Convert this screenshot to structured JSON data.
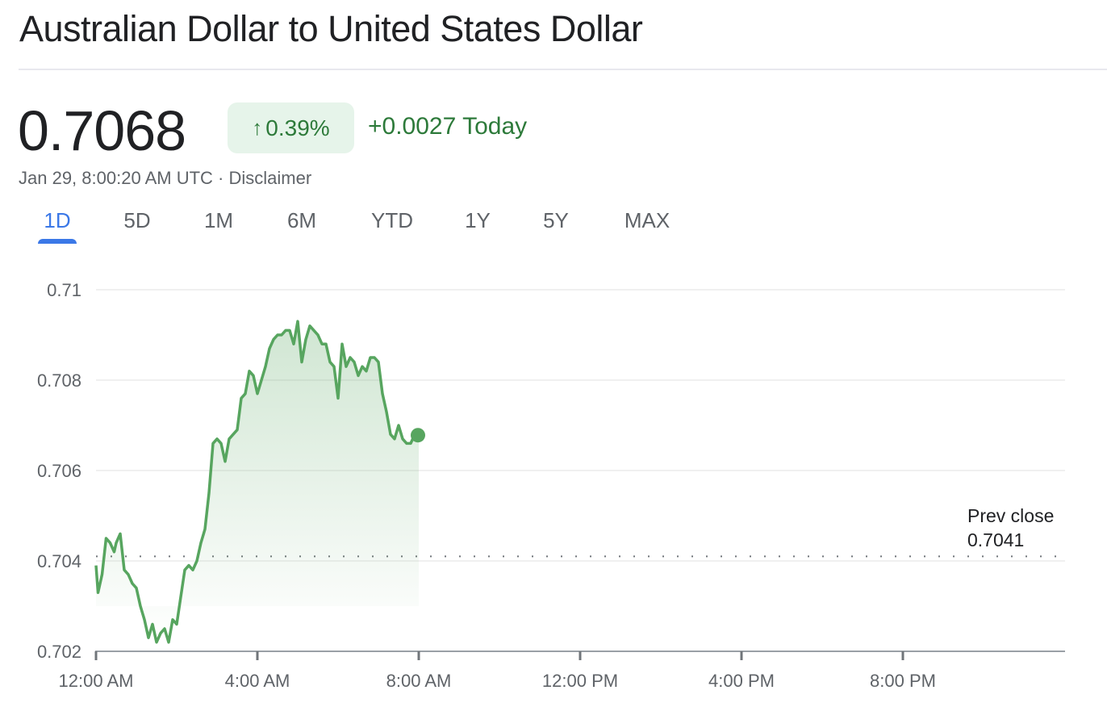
{
  "header": {
    "title": "Australian Dollar to United States Dollar"
  },
  "quote": {
    "price": "0.7068",
    "change_percent": "0.39%",
    "change_arrow": "↑",
    "change_abs": "+0.0027 Today",
    "timestamp": "Jan 29, 8:00:20 AM UTC",
    "separator": "·",
    "disclaimer": "Disclaimer"
  },
  "tabs": [
    {
      "label": "1D",
      "active": true
    },
    {
      "label": "5D"
    },
    {
      "label": "1M"
    },
    {
      "label": "6M"
    },
    {
      "label": "YTD"
    },
    {
      "label": "1Y"
    },
    {
      "label": "5Y"
    },
    {
      "label": "MAX"
    }
  ],
  "colors": {
    "line": "#57a55f",
    "positive_text": "#2d7a3a",
    "badge_bg": "#e6f4ea",
    "active_tab": "#3b78e7"
  },
  "prev_close": {
    "label": "Prev close",
    "value": "0.7041"
  },
  "chart_data": {
    "type": "area",
    "title": "Australian Dollar to United States Dollar (1D)",
    "xlabel": "",
    "ylabel": "",
    "x_ticks": [
      "12:00 AM",
      "4:00 AM",
      "8:00 AM",
      "12:00 PM",
      "4:00 PM",
      "8:00 PM"
    ],
    "y_ticks": [
      "0.702",
      "0.704",
      "0.706",
      "0.708",
      "0.71"
    ],
    "ylim": [
      0.702,
      0.71
    ],
    "xlim_hours": [
      0,
      24
    ],
    "grid": true,
    "reference_line": {
      "label": "Prev close",
      "value": 0.7041,
      "style": "dotted"
    },
    "last_point": {
      "time": "8:00 AM",
      "value": 0.7068
    },
    "series": [
      {
        "name": "AUD/USD",
        "x_hours": [
          0,
          0.05,
          0.15,
          0.25,
          0.35,
          0.45,
          0.5,
          0.6,
          0.7,
          0.8,
          0.9,
          1.0,
          1.1,
          1.2,
          1.3,
          1.4,
          1.5,
          1.6,
          1.7,
          1.8,
          1.9,
          2.0,
          2.1,
          2.2,
          2.3,
          2.4,
          2.5,
          2.6,
          2.7,
          2.8,
          2.9,
          3.0,
          3.1,
          3.2,
          3.3,
          3.4,
          3.5,
          3.6,
          3.7,
          3.8,
          3.9,
          4.0,
          4.1,
          4.2,
          4.3,
          4.4,
          4.5,
          4.6,
          4.7,
          4.8,
          4.9,
          5.0,
          5.1,
          5.2,
          5.3,
          5.4,
          5.5,
          5.6,
          5.7,
          5.8,
          5.9,
          6.0,
          6.1,
          6.2,
          6.3,
          6.4,
          6.5,
          6.6,
          6.7,
          6.8,
          6.9,
          7.0,
          7.1,
          7.2,
          7.3,
          7.4,
          7.5,
          7.6,
          7.7,
          7.8,
          7.9,
          8.0
        ],
        "values": [
          0.7039,
          0.7033,
          0.7037,
          0.7045,
          0.7044,
          0.7042,
          0.7044,
          0.7046,
          0.7038,
          0.7037,
          0.7035,
          0.7034,
          0.703,
          0.7027,
          0.7023,
          0.7026,
          0.7022,
          0.7024,
          0.7025,
          0.7022,
          0.7027,
          0.7026,
          0.7032,
          0.7038,
          0.7039,
          0.7038,
          0.704,
          0.7044,
          0.7047,
          0.7055,
          0.7066,
          0.7067,
          0.7066,
          0.7062,
          0.7067,
          0.7068,
          0.7069,
          0.7076,
          0.7077,
          0.7082,
          0.7081,
          0.7077,
          0.708,
          0.7083,
          0.7087,
          0.7089,
          0.709,
          0.709,
          0.7091,
          0.7091,
          0.7088,
          0.7093,
          0.7084,
          0.7089,
          0.7092,
          0.7091,
          0.709,
          0.7088,
          0.7088,
          0.7084,
          0.7083,
          0.7076,
          0.7088,
          0.7083,
          0.7085,
          0.7084,
          0.7081,
          0.7083,
          0.7082,
          0.7085,
          0.7085,
          0.7084,
          0.7077,
          0.7073,
          0.7068,
          0.7067,
          0.707,
          0.7067,
          0.7066,
          0.7066,
          0.7068,
          0.7068
        ]
      }
    ]
  }
}
